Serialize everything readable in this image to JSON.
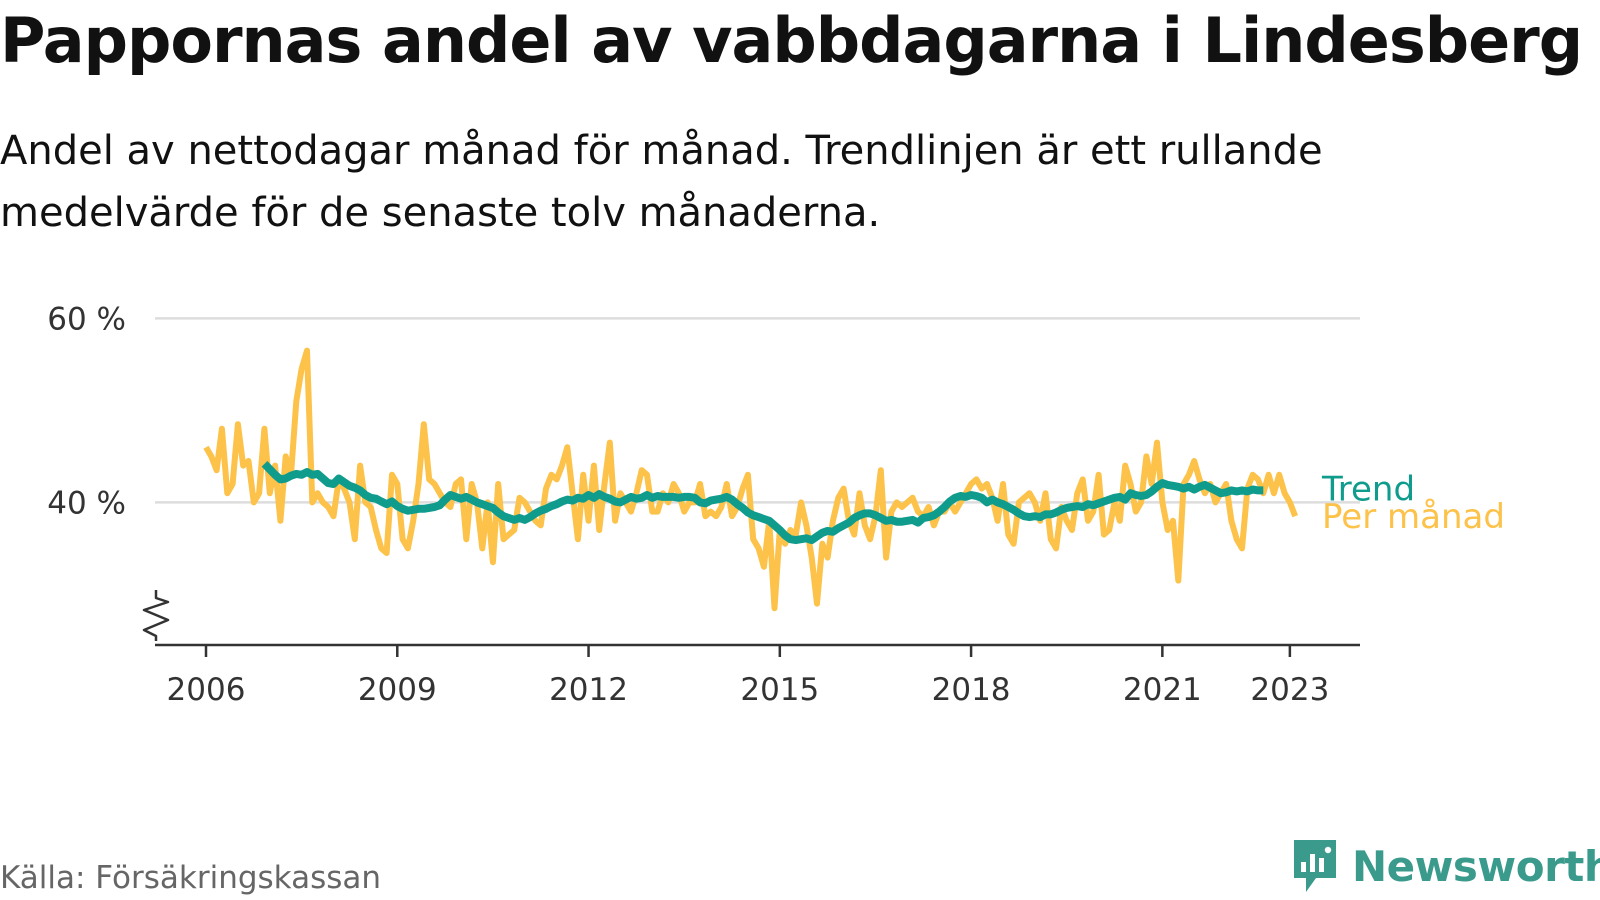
{
  "title": "Pappornas andel av vabbdagarna i Lindesberg",
  "subtitle": "Andel av nettodagar månad för månad. Trendlinjen är ett rullande medelvärde för de senaste tolv månaderna.",
  "source": "Källa: Försäkringskassan",
  "brand": "Newsworthy",
  "colors": {
    "trend": "#109c8c",
    "per_manad": "#fcc24a",
    "brand": "#3a9a8c",
    "grid": "#dddddd",
    "axis": "#333333"
  },
  "chart_data": {
    "type": "line",
    "y_ticks": [
      {
        "value": 40,
        "label": "40 %"
      },
      {
        "value": 60,
        "label": "60 %"
      }
    ],
    "x_ticks": [
      {
        "value": 2006,
        "label": "2006"
      },
      {
        "value": 2009,
        "label": "2009"
      },
      {
        "value": 2012,
        "label": "2012"
      },
      {
        "value": 2015,
        "label": "2015"
      },
      {
        "value": 2018,
        "label": "2018"
      },
      {
        "value": 2021,
        "label": "2021"
      },
      {
        "value": 2023,
        "label": "2023"
      }
    ],
    "xlim": [
      2005.2,
      2024.1
    ],
    "ylim": [
      24.5,
      62
    ],
    "y_axis_break": true,
    "grid": true,
    "series": [
      {
        "name": "Per månad",
        "color": "#fcc24a",
        "x_start": 2006.0,
        "step": 0.0833333,
        "values": [
          46,
          45,
          43.5,
          48,
          41,
          42,
          48.5,
          44,
          44.5,
          40,
          41,
          48,
          41,
          44,
          38,
          45,
          43,
          51,
          54.5,
          56.5,
          40,
          41,
          40,
          39.5,
          38.5,
          42.5,
          41.5,
          40,
          36,
          44,
          40,
          39.5,
          37,
          35,
          34.5,
          43,
          42,
          36,
          35,
          38,
          42,
          48.5,
          42.5,
          42,
          41,
          40,
          39.5,
          42,
          42.5,
          36,
          42,
          40,
          35,
          40,
          33.5,
          42,
          36,
          36.5,
          37,
          40.5,
          40,
          39,
          38,
          37.5,
          41.5,
          43,
          42.5,
          44,
          46,
          41,
          36,
          43,
          38,
          44,
          37,
          42,
          46.5,
          38,
          41,
          40,
          39,
          41,
          43.5,
          43,
          39,
          39,
          41,
          40,
          42,
          41,
          39,
          40,
          40,
          42,
          38.5,
          39,
          38.5,
          39.5,
          42,
          38.5,
          39.5,
          41.5,
          43,
          36,
          35,
          33,
          38,
          28.5,
          37,
          35.5,
          37,
          36.5,
          40,
          37.5,
          34,
          29,
          35.5,
          34,
          38,
          40.5,
          41.5,
          38,
          36.5,
          41,
          37.5,
          36,
          38.5,
          43.5,
          34,
          39,
          40,
          39.5,
          40,
          40.5,
          39,
          38.5,
          39.5,
          37.5,
          39,
          39,
          40,
          39,
          40,
          41,
          42,
          42.5,
          41.5,
          42,
          40.5,
          38,
          42,
          36.5,
          35.5,
          40,
          40.5,
          41,
          40,
          38,
          41,
          36,
          35,
          39.5,
          38,
          37,
          41,
          42.5,
          38,
          39,
          43,
          36.5,
          37,
          40,
          38,
          44,
          42,
          39,
          40,
          45,
          42,
          46.5,
          40,
          37,
          38,
          31.5,
          42,
          43,
          44.5,
          42.5,
          41,
          42,
          40,
          41,
          42,
          38,
          36,
          35,
          41.5,
          43,
          42.5,
          41,
          43,
          41,
          43,
          41,
          40,
          38.5
        ]
      },
      {
        "name": "Trend",
        "color": "#109c8c",
        "x_start": 2006.9167,
        "step": 0.0833333,
        "values": [
          44.2,
          43.6,
          43.0,
          42.5,
          42.6,
          42.9,
          43.1,
          43.0,
          43.3,
          43.0,
          43.1,
          42.6,
          42.1,
          42.0,
          42.6,
          42.2,
          41.8,
          41.6,
          41.3,
          40.8,
          40.5,
          40.4,
          40.1,
          39.8,
          40.1,
          39.6,
          39.3,
          39.1,
          39.2,
          39.3,
          39.3,
          39.4,
          39.5,
          39.7,
          40.3,
          40.8,
          40.6,
          40.4,
          40.6,
          40.3,
          40.0,
          39.8,
          39.6,
          39.4,
          38.9,
          38.5,
          38.3,
          38.1,
          38.3,
          38.1,
          38.4,
          38.8,
          39.1,
          39.3,
          39.6,
          39.8,
          40.1,
          40.3,
          40.2,
          40.5,
          40.4,
          40.8,
          40.5,
          40.9,
          40.6,
          40.4,
          40.1,
          40.0,
          40.3,
          40.6,
          40.4,
          40.5,
          40.8,
          40.5,
          40.7,
          40.6,
          40.6,
          40.6,
          40.5,
          40.6,
          40.6,
          40.5,
          40.0,
          39.9,
          40.2,
          40.3,
          40.4,
          40.6,
          40.3,
          39.8,
          39.4,
          38.9,
          38.6,
          38.4,
          38.2,
          38.0,
          37.5,
          37.0,
          36.4,
          36.0,
          35.9,
          36.0,
          36.1,
          35.9,
          36.3,
          36.7,
          36.9,
          36.8,
          37.2,
          37.5,
          37.8,
          38.3,
          38.6,
          38.8,
          38.8,
          38.6,
          38.3,
          38.0,
          38.1,
          37.9,
          37.9,
          38.0,
          38.1,
          37.8,
          38.3,
          38.4,
          38.6,
          39.0,
          39.5,
          40.1,
          40.5,
          40.7,
          40.6,
          40.8,
          40.7,
          40.5,
          40.0,
          40.3,
          40.0,
          39.8,
          39.5,
          39.2,
          38.8,
          38.5,
          38.4,
          38.5,
          38.4,
          38.7,
          38.7,
          38.9,
          39.2,
          39.4,
          39.5,
          39.6,
          39.5,
          39.8,
          39.7,
          39.9,
          40.1,
          40.3,
          40.5,
          40.6,
          40.3,
          41.0,
          40.8,
          40.7,
          40.8,
          41.2,
          41.7,
          42.1,
          41.9,
          41.8,
          41.7,
          41.5,
          41.7,
          41.4,
          41.7,
          41.9,
          41.6,
          41.3,
          41.0,
          41.1,
          41.3,
          41.2,
          41.3,
          41.2,
          41.4,
          41.3,
          41.3
        ]
      }
    ]
  }
}
